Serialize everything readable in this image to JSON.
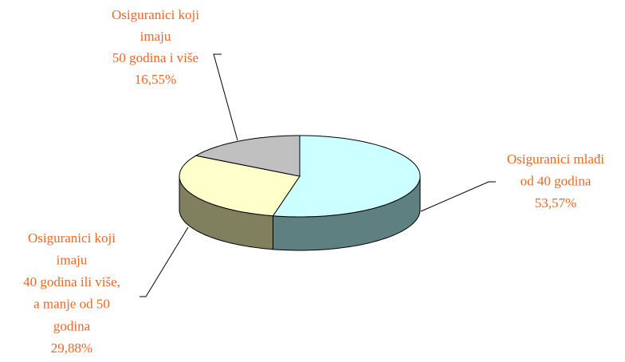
{
  "chart_data": {
    "type": "pie",
    "categories": [
      [
        "Osiguranici mlađi",
        "od 40 godina"
      ],
      [
        "Osiguranici koji",
        "imaju",
        "40 godina ili više,",
        "a manje od 50",
        "godina"
      ],
      [
        "Osiguranici koji",
        "imaju",
        "50 godina i više"
      ]
    ],
    "values": [
      53.57,
      29.88,
      16.55
    ],
    "value_labels": [
      "53,57%",
      "29,88%",
      "16,55%"
    ],
    "colors": [
      "#ccffff",
      "#ffffcc",
      "#c0c0c0"
    ],
    "side_colors": [
      "#5f8080",
      "#80805f",
      "#909090"
    ]
  }
}
